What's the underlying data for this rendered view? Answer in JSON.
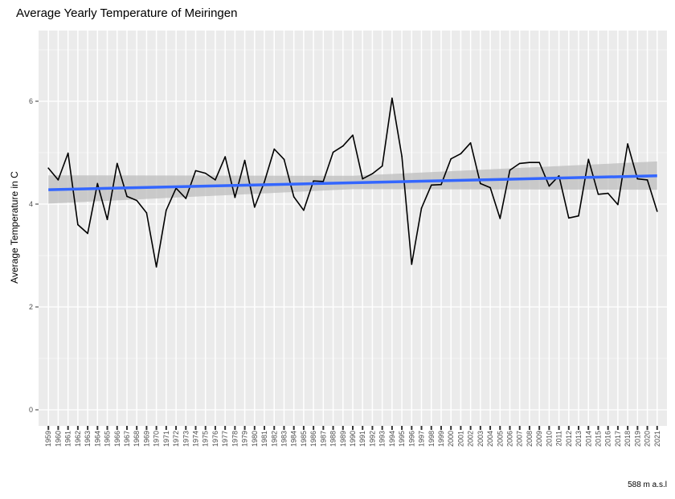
{
  "chart_data": {
    "type": "line",
    "title": "Average Yearly Temperature of Meiringen",
    "xlabel": "",
    "ylabel": "Average Temperature in C",
    "caption": "588 m a.s.l",
    "xlim": [
      1959,
      2021
    ],
    "ylim": [
      0,
      7
    ],
    "y_ticks": [
      0,
      2,
      4,
      6
    ],
    "grid": true,
    "colors": {
      "panel_background": "#ebebeb",
      "grid": "#ffffff",
      "series_line": "#000000",
      "trend_line": "#3366ff",
      "confidence_band": "#bdbdbd"
    },
    "x": [
      1959,
      1960,
      1961,
      1962,
      1963,
      1964,
      1965,
      1966,
      1967,
      1968,
      1969,
      1970,
      1971,
      1972,
      1973,
      1974,
      1975,
      1976,
      1977,
      1978,
      1979,
      1980,
      1981,
      1982,
      1983,
      1984,
      1985,
      1986,
      1987,
      1988,
      1989,
      1990,
      1991,
      1992,
      1993,
      1994,
      1995,
      1996,
      1997,
      1998,
      1999,
      2000,
      2001,
      2002,
      2003,
      2004,
      2005,
      2006,
      2007,
      2008,
      2009,
      2010,
      2011,
      2012,
      2013,
      2014,
      2015,
      2016,
      2017,
      2018,
      2019,
      2020,
      2021
    ],
    "series": [
      {
        "values": [
          4.7,
          4.47,
          4.99,
          3.6,
          3.43,
          4.4,
          3.7,
          4.79,
          4.15,
          4.07,
          3.83,
          2.78,
          3.88,
          4.31,
          4.11,
          4.65,
          4.6,
          4.47,
          4.92,
          4.13,
          4.85,
          3.94,
          4.43,
          5.07,
          4.87,
          4.14,
          3.88,
          4.45,
          4.44,
          5.01,
          5.13,
          5.34,
          4.49,
          4.59,
          4.74,
          6.06,
          4.93,
          2.83,
          3.92,
          4.37,
          4.38,
          4.88,
          4.98,
          5.19,
          4.4,
          4.32,
          3.72,
          4.66,
          4.79,
          4.81,
          4.81,
          4.35,
          4.55,
          3.73,
          3.77,
          4.87,
          4.19,
          4.21,
          3.99,
          5.17,
          4.49,
          4.47,
          3.86
        ]
      }
    ],
    "trend": {
      "method": "linear",
      "y_start": 4.28,
      "y_end": 4.55,
      "band_start": [
        4.01,
        4.56
      ],
      "band_mid": [
        4.29,
        4.55
      ],
      "band_end": [
        4.28,
        4.83
      ]
    }
  }
}
